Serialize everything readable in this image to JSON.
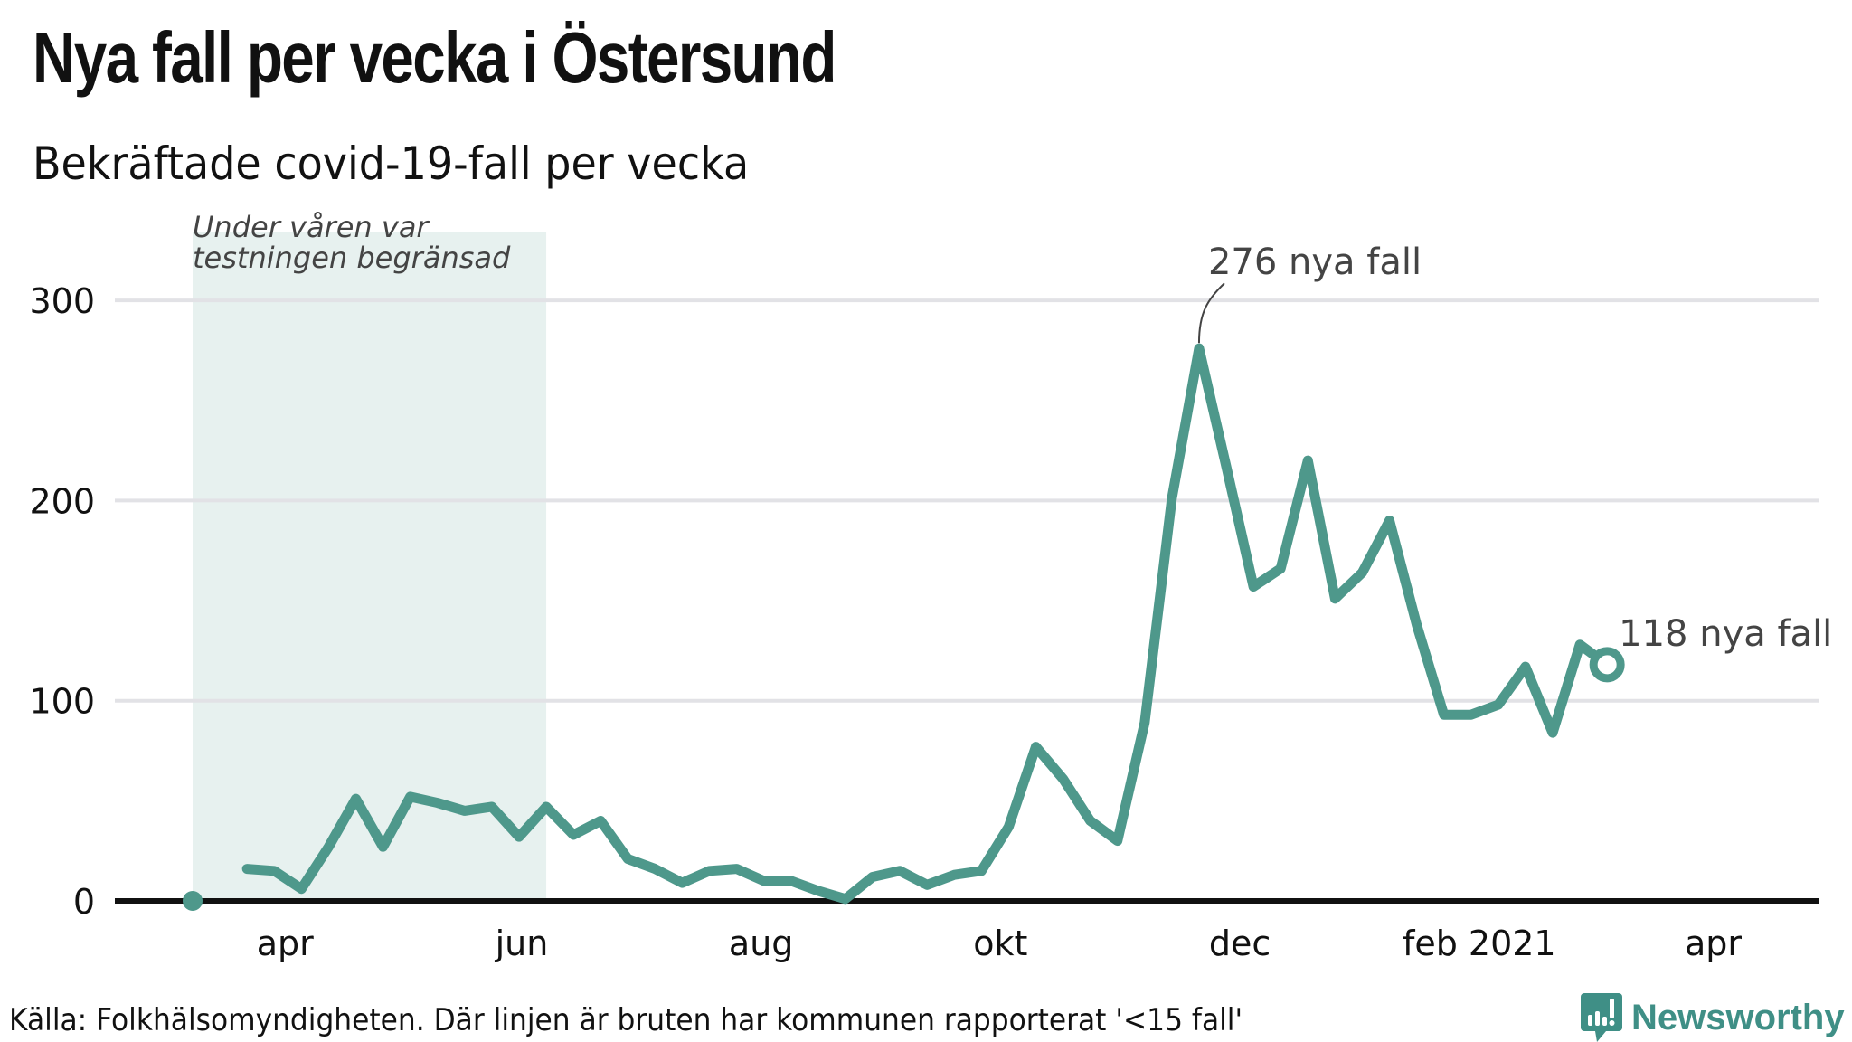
{
  "header": {
    "title": "Nya fall per vecka i Östersund",
    "subtitle": "Bekräftade covid-19-fall per vecka"
  },
  "footer": {
    "source": "Källa: Folkhälsomyndigheten. Där linjen är bruten har kommunen rapporterat '<15 fall'",
    "brand": "Newsworthy"
  },
  "colors": {
    "line": "#4e988b",
    "shade": "#e7f1ef",
    "grid": "#e2e2e6",
    "axis": "#111111",
    "brand": "#3f8f86"
  },
  "chart_data": {
    "type": "line",
    "title": "Nya fall per vecka i Östersund",
    "subtitle": "Bekräftade covid-19-fall per vecka",
    "xlabel": "",
    "ylabel": "",
    "ylim": [
      0,
      330
    ],
    "yticks": [
      0,
      100,
      200,
      300
    ],
    "grid": true,
    "x_tick_labels": [
      {
        "label": "apr",
        "week_index": 3.4
      },
      {
        "label": "jun",
        "week_index": 12.1
      },
      {
        "label": "aug",
        "week_index": 20.9
      },
      {
        "label": "okt",
        "week_index": 29.7
      },
      {
        "label": "dec",
        "week_index": 38.5
      },
      {
        "label": "feb 2021",
        "week_index": 47.3
      },
      {
        "label": "apr",
        "week_index": 55.9
      }
    ],
    "x_range_weeks": [
      -2.8,
      59.8
    ],
    "series": [
      {
        "name": "Nya fall",
        "week_index": [
          0,
          1,
          2,
          3,
          4,
          5,
          6,
          7,
          8,
          9,
          10,
          11,
          12,
          13,
          14,
          15,
          16,
          17,
          18,
          19,
          20,
          21,
          22,
          23,
          24,
          25,
          26,
          27,
          28,
          29,
          30,
          31,
          32,
          33,
          34,
          35,
          36,
          37,
          38,
          39,
          40,
          41,
          42,
          43,
          44,
          45,
          46,
          47,
          48,
          49,
          50,
          51,
          52
        ],
        "values": [
          0,
          null,
          16,
          15,
          6,
          27,
          51,
          27,
          52,
          49,
          45,
          47,
          32,
          47,
          33,
          40,
          21,
          16,
          9,
          15,
          16,
          10,
          10,
          5,
          1,
          12,
          15,
          8,
          13,
          15,
          37,
          77,
          61,
          40,
          30,
          89,
          201,
          276,
          217,
          157,
          166,
          220,
          151,
          164,
          190,
          138,
          93,
          93,
          98,
          117,
          84,
          128,
          118
        ]
      }
    ],
    "shaded_region": {
      "from_week_index": 0,
      "to_week_index": 13,
      "label_line1": "Under våren var",
      "label_line2": "testningen begränsad"
    },
    "annotations": [
      {
        "week_index": 37,
        "value": 276,
        "text": "276 nya fall"
      },
      {
        "week_index": 52,
        "value": 118,
        "text": "118 nya fall"
      }
    ]
  }
}
